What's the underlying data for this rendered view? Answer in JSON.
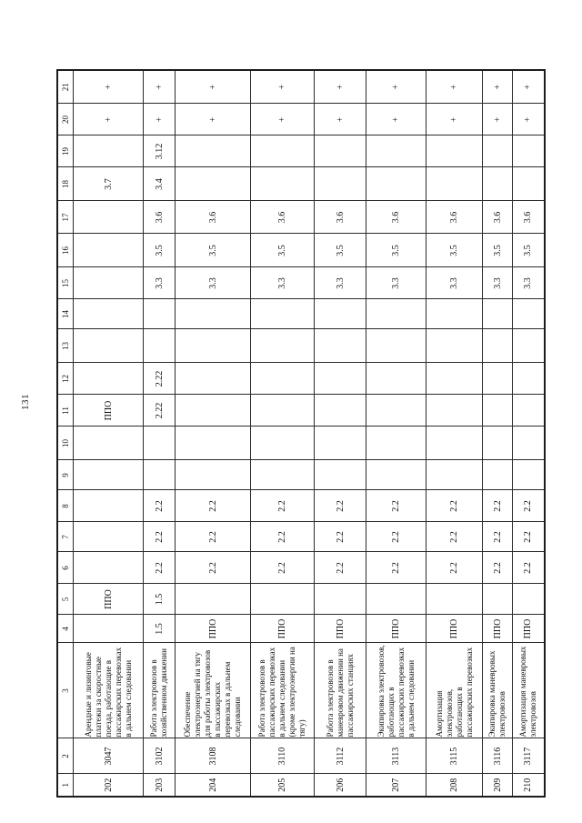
{
  "page_number": "131",
  "table": {
    "header": [
      "1",
      "2",
      "3",
      "4",
      "5",
      "6",
      "7",
      "8",
      "9",
      "10",
      "11",
      "12",
      "13",
      "14",
      "15",
      "16",
      "17",
      "18",
      "19",
      "20",
      "21"
    ],
    "rows": [
      {
        "cells": [
          "202",
          "3047",
          "Арендные и лизинговые платежи за скоростные поезда, работающие в пассажирских перевозках в дальнем следовании",
          "",
          "ППО",
          "",
          "",
          "",
          "",
          "",
          "ППО",
          "",
          "",
          "",
          "",
          "",
          "",
          "3.7",
          "",
          "+",
          "+"
        ]
      },
      {
        "cells": [
          "203",
          "3102",
          "Работа электровозов в хозяйственном движении",
          "1.5",
          "1.5",
          "2.2",
          "2.2",
          "2.2",
          "",
          "",
          "2.22",
          "2.22",
          "",
          "",
          "3.3",
          "3.5",
          "3.6",
          "3.4",
          "3.12",
          "+",
          "+"
        ]
      },
      {
        "cells": [
          "204",
          "3108",
          "Обеспечение электроэнергией на тягу для работы электровозов в пассажирских перевозках в дальнем следовании",
          "ППО",
          "",
          "2.2",
          "2.2",
          "2.2",
          "",
          "",
          "",
          "",
          "",
          "",
          "3.3",
          "3.5",
          "3.6",
          "",
          "",
          "+",
          "+"
        ]
      },
      {
        "cells": [
          "205",
          "3110",
          "Работа электровозов в пассажирских перевозках в дальнем следовании (кроме электроэнергии на тягу)",
          "ППО",
          "",
          "2.2",
          "2.2",
          "2.2",
          "",
          "",
          "",
          "",
          "",
          "",
          "3.3",
          "3.5",
          "3.6",
          "",
          "",
          "+",
          "+"
        ]
      },
      {
        "cells": [
          "206",
          "3112",
          "Работа электровозов в маневровом движении на пассажирских станциях",
          "ППО",
          "",
          "2.2",
          "2.2",
          "2.2",
          "",
          "",
          "",
          "",
          "",
          "",
          "3.3",
          "3.5",
          "3.6",
          "",
          "",
          "+",
          "+"
        ]
      },
      {
        "cells": [
          "207",
          "3113",
          "Экипировка электровозов, работающих в пассажирских перевозках в дальнем следовании",
          "ППО",
          "",
          "2.2",
          "2.2",
          "2.2",
          "",
          "",
          "",
          "",
          "",
          "",
          "3.3",
          "3.5",
          "3.6",
          "",
          "",
          "+",
          "+"
        ]
      },
      {
        "cells": [
          "208",
          "3115",
          "Амортизация электровозов, работающих в пассажирских перевозках",
          "ППО",
          "",
          "2.2",
          "2.2",
          "2.2",
          "",
          "",
          "",
          "",
          "",
          "",
          "3.3",
          "3.5",
          "3.6",
          "",
          "",
          "+",
          "+"
        ]
      },
      {
        "cells": [
          "209",
          "3116",
          "Экипировка маневровых электровозов",
          "ППО",
          "",
          "2.2",
          "2.2",
          "2.2",
          "",
          "",
          "",
          "",
          "",
          "",
          "3.3",
          "3.5",
          "3.6",
          "",
          "",
          "+",
          "+"
        ]
      },
      {
        "cells": [
          "210",
          "3117",
          "Амортизация маневровых электровозов",
          "ППО",
          "",
          "2.2",
          "2.2",
          "2.2",
          "",
          "",
          "",
          "",
          "",
          "",
          "3.3",
          "3.5",
          "3.6",
          "",
          "",
          "+",
          "+"
        ]
      }
    ]
  }
}
